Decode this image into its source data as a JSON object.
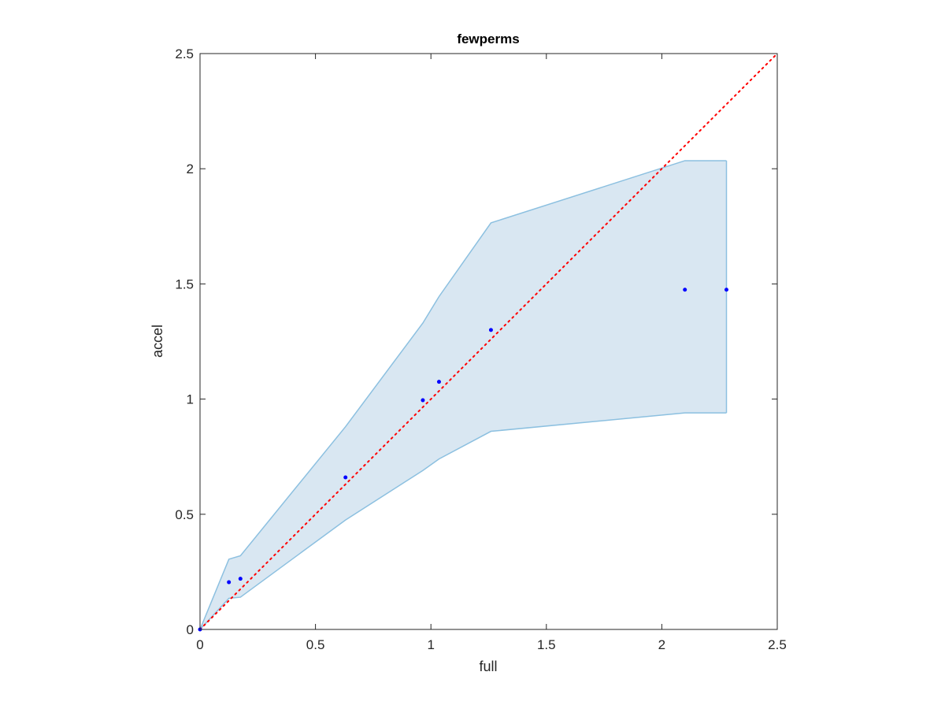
{
  "chart_data": {
    "type": "scatter",
    "title": "fewperms",
    "xlabel": "full",
    "ylabel": "accel",
    "xlim": [
      0,
      2.5
    ],
    "ylim": [
      0,
      2.5
    ],
    "xticks": [
      "0",
      "0.5",
      "1",
      "1.5",
      "2",
      "2.5"
    ],
    "yticks": [
      "0",
      "0.5",
      "1",
      "1.5",
      "2",
      "2.5"
    ],
    "grid": false,
    "legend": "none",
    "points": {
      "color": "#0000ff",
      "x": [
        0.0,
        0.125,
        0.175,
        0.63,
        0.965,
        1.035,
        1.26,
        2.1,
        2.28
      ],
      "y": [
        0.0,
        0.205,
        0.22,
        0.66,
        0.995,
        1.075,
        1.3,
        1.475,
        1.475
      ]
    },
    "band": {
      "fill": "#d9e7f2",
      "stroke": "#8cc0e0",
      "x": [
        0.0,
        0.125,
        0.175,
        0.63,
        0.965,
        1.035,
        1.26,
        2.1,
        2.28
      ],
      "upper": [
        0.0,
        0.305,
        0.32,
        0.88,
        1.33,
        1.445,
        1.765,
        2.035,
        2.035
      ],
      "lower": [
        0.0,
        0.135,
        0.14,
        0.475,
        0.69,
        0.74,
        0.86,
        0.94,
        0.94
      ]
    },
    "reference_line": {
      "color": "#ff0000",
      "style": "dotted",
      "x": [
        0,
        2.5
      ],
      "y": [
        0,
        2.5
      ]
    }
  }
}
